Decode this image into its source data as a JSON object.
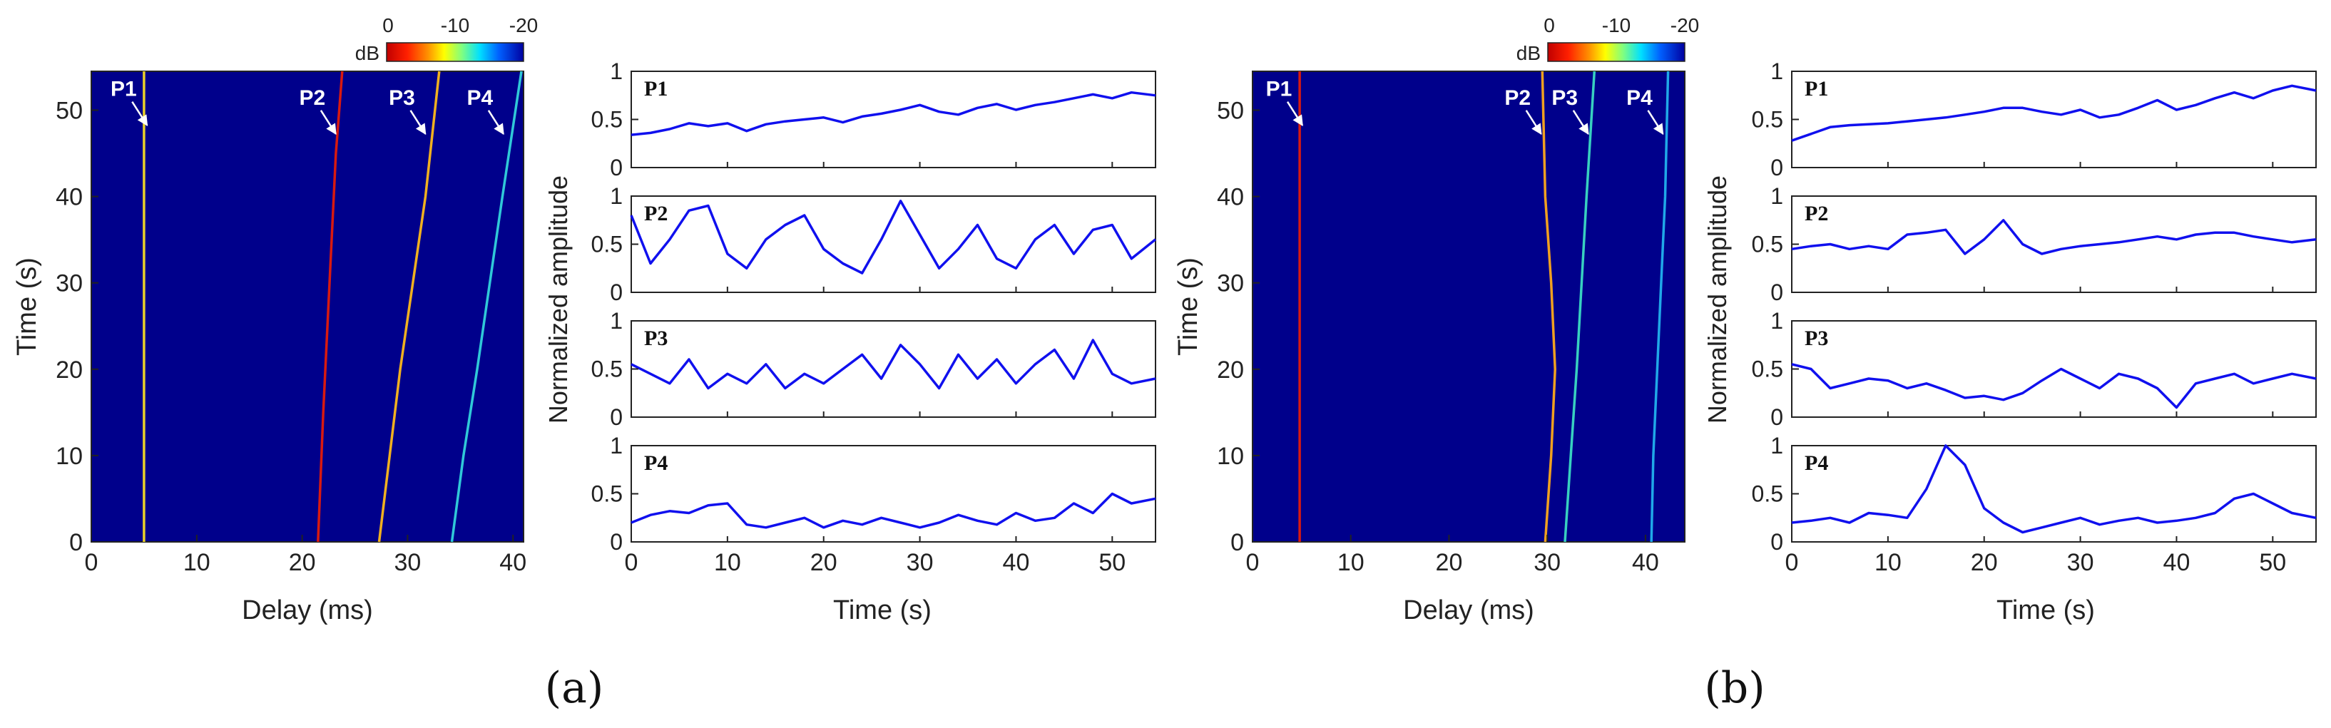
{
  "chart_data": [
    {
      "panel": "(a)",
      "caption": "(a)",
      "delay_time_map": {
        "type": "heatmap",
        "xlabel": "Delay (ms)",
        "ylabel": "Time (s)",
        "xlim": [
          0,
          41
        ],
        "ylim": [
          0,
          54.5
        ],
        "xticks": [
          "0",
          "10",
          "20",
          "30",
          "40"
        ],
        "yticks": [
          "0",
          "10",
          "20",
          "30",
          "40",
          "50"
        ],
        "background_color": "#00008B",
        "colorbar": {
          "label": "dB",
          "ticks": [
            "0",
            "-10",
            "-20"
          ],
          "range": [
            0,
            -20
          ]
        },
        "paths": [
          {
            "name": "P1",
            "color": "#e8d02a",
            "trace": [
              [
                5.0,
                0
              ],
              [
                5.0,
                54.5
              ]
            ]
          },
          {
            "name": "P2",
            "color": "#d81a10",
            "trace": [
              [
                21.5,
                0
              ],
              [
                22.0,
                15
              ],
              [
                22.6,
                30
              ],
              [
                23.2,
                45
              ],
              [
                23.8,
                54.5
              ]
            ]
          },
          {
            "name": "P3",
            "color": "#f0b020",
            "trace": [
              [
                27.3,
                0
              ],
              [
                28.3,
                10
              ],
              [
                29.3,
                20
              ],
              [
                30.5,
                30
              ],
              [
                31.7,
                40
              ],
              [
                33.0,
                54.5
              ]
            ]
          },
          {
            "name": "P4",
            "color": "#30c8d8",
            "trace": [
              [
                34.2,
                0
              ],
              [
                35.3,
                10
              ],
              [
                36.6,
                20
              ],
              [
                37.8,
                30
              ],
              [
                39.0,
                40
              ],
              [
                40.8,
                54.5
              ]
            ]
          }
        ],
        "annotations": [
          {
            "label": "P1",
            "tip": [
              5.5,
              48
            ]
          },
          {
            "label": "P2",
            "tip": [
              23.4,
              47
            ]
          },
          {
            "label": "P3",
            "tip": [
              31.9,
              47
            ]
          },
          {
            "label": "P4",
            "tip": [
              39.3,
              47
            ]
          }
        ]
      },
      "amplitude_traces": {
        "type": "line",
        "xlabel": "Time (s)",
        "ylabel": "Normalized amplitude",
        "xlim": [
          0,
          54.5
        ],
        "ylim": [
          0,
          1
        ],
        "xticks": [
          "0",
          "10",
          "20",
          "30",
          "40",
          "50"
        ],
        "yticks": [
          "0",
          "0.5",
          "1"
        ],
        "line_color": "#1010ee",
        "x": [
          0,
          2,
          4,
          6,
          8,
          10,
          12,
          14,
          16,
          18,
          20,
          22,
          24,
          26,
          28,
          30,
          32,
          34,
          36,
          38,
          40,
          42,
          44,
          46,
          48,
          50,
          52,
          54.5
        ],
        "series": [
          {
            "name": "P1",
            "values": [
              0.34,
              0.36,
              0.4,
              0.46,
              0.43,
              0.46,
              0.38,
              0.45,
              0.48,
              0.5,
              0.52,
              0.47,
              0.53,
              0.56,
              0.6,
              0.65,
              0.58,
              0.55,
              0.62,
              0.66,
              0.6,
              0.65,
              0.68,
              0.72,
              0.76,
              0.72,
              0.78,
              0.75
            ]
          },
          {
            "name": "P2",
            "values": [
              0.8,
              0.3,
              0.55,
              0.85,
              0.9,
              0.4,
              0.25,
              0.55,
              0.7,
              0.8,
              0.45,
              0.3,
              0.2,
              0.55,
              0.95,
              0.6,
              0.25,
              0.45,
              0.7,
              0.35,
              0.25,
              0.55,
              0.7,
              0.4,
              0.65,
              0.7,
              0.35,
              0.55
            ]
          },
          {
            "name": "P3",
            "values": [
              0.55,
              0.45,
              0.35,
              0.6,
              0.3,
              0.45,
              0.35,
              0.55,
              0.3,
              0.45,
              0.35,
              0.5,
              0.65,
              0.4,
              0.75,
              0.55,
              0.3,
              0.65,
              0.4,
              0.6,
              0.35,
              0.55,
              0.7,
              0.4,
              0.8,
              0.45,
              0.35,
              0.4
            ]
          },
          {
            "name": "P4",
            "values": [
              0.2,
              0.28,
              0.32,
              0.3,
              0.38,
              0.4,
              0.18,
              0.15,
              0.2,
              0.25,
              0.15,
              0.22,
              0.18,
              0.25,
              0.2,
              0.15,
              0.2,
              0.28,
              0.22,
              0.18,
              0.3,
              0.22,
              0.25,
              0.4,
              0.3,
              0.5,
              0.4,
              0.45
            ]
          }
        ]
      }
    },
    {
      "panel": "(b)",
      "caption": "(b)",
      "delay_time_map": {
        "type": "heatmap",
        "xlabel": "Delay (ms)",
        "ylabel": "Time (s)",
        "xlim": [
          0,
          44
        ],
        "ylim": [
          0,
          54.5
        ],
        "xticks": [
          "0",
          "10",
          "20",
          "30",
          "40"
        ],
        "yticks": [
          "0",
          "10",
          "20",
          "30",
          "40",
          "50"
        ],
        "background_color": "#00008B",
        "colorbar": {
          "label": "dB",
          "ticks": [
            "0",
            "-10",
            "-20"
          ],
          "range": [
            0,
            -20
          ]
        },
        "paths": [
          {
            "name": "P1",
            "color": "#d81a10",
            "trace": [
              [
                4.8,
                0
              ],
              [
                4.8,
                54.5
              ]
            ]
          },
          {
            "name": "P2",
            "color": "#f0a020",
            "trace": [
              [
                29.8,
                0
              ],
              [
                30.4,
                10
              ],
              [
                30.8,
                20
              ],
              [
                30.4,
                30
              ],
              [
                29.8,
                40
              ],
              [
                29.5,
                54.5
              ]
            ]
          },
          {
            "name": "P3",
            "color": "#38d0c0",
            "trace": [
              [
                31.8,
                0
              ],
              [
                32.4,
                10
              ],
              [
                33.0,
                20
              ],
              [
                33.5,
                30
              ],
              [
                34.0,
                40
              ],
              [
                34.8,
                54.5
              ]
            ]
          },
          {
            "name": "P4",
            "color": "#20a8e8",
            "trace": [
              [
                40.6,
                0
              ],
              [
                40.8,
                10
              ],
              [
                41.2,
                20
              ],
              [
                41.6,
                30
              ],
              [
                42.0,
                40
              ],
              [
                42.3,
                54.5
              ]
            ]
          }
        ],
        "annotations": [
          {
            "label": "P1",
            "tip": [
              5.3,
              48
            ]
          },
          {
            "label": "P2",
            "tip": [
              29.6,
              47
            ]
          },
          {
            "label": "P3",
            "tip": [
              34.4,
              47
            ]
          },
          {
            "label": "P4",
            "tip": [
              42.0,
              47
            ]
          }
        ]
      },
      "amplitude_traces": {
        "type": "line",
        "xlabel": "Time (s)",
        "ylabel": "Normalized amplitude",
        "xlim": [
          0,
          54.5
        ],
        "ylim": [
          0,
          1
        ],
        "xticks": [
          "0",
          "10",
          "20",
          "30",
          "40",
          "50"
        ],
        "yticks": [
          "0",
          "0.5",
          "1"
        ],
        "line_color": "#1010ee",
        "x": [
          0,
          2,
          4,
          6,
          8,
          10,
          12,
          14,
          16,
          18,
          20,
          22,
          24,
          26,
          28,
          30,
          32,
          34,
          36,
          38,
          40,
          42,
          44,
          46,
          48,
          50,
          52,
          54.5
        ],
        "series": [
          {
            "name": "P1",
            "values": [
              0.28,
              0.35,
              0.42,
              0.44,
              0.45,
              0.46,
              0.48,
              0.5,
              0.52,
              0.55,
              0.58,
              0.62,
              0.62,
              0.58,
              0.55,
              0.6,
              0.52,
              0.55,
              0.62,
              0.7,
              0.6,
              0.65,
              0.72,
              0.78,
              0.72,
              0.8,
              0.85,
              0.8
            ]
          },
          {
            "name": "P2",
            "values": [
              0.45,
              0.48,
              0.5,
              0.45,
              0.48,
              0.45,
              0.6,
              0.62,
              0.65,
              0.4,
              0.55,
              0.75,
              0.5,
              0.4,
              0.45,
              0.48,
              0.5,
              0.52,
              0.55,
              0.58,
              0.55,
              0.6,
              0.62,
              0.62,
              0.58,
              0.55,
              0.52,
              0.55
            ]
          },
          {
            "name": "P3",
            "values": [
              0.55,
              0.5,
              0.3,
              0.35,
              0.4,
              0.38,
              0.3,
              0.35,
              0.28,
              0.2,
              0.22,
              0.18,
              0.25,
              0.38,
              0.5,
              0.4,
              0.3,
              0.45,
              0.4,
              0.3,
              0.1,
              0.35,
              0.4,
              0.45,
              0.35,
              0.4,
              0.45,
              0.4
            ]
          },
          {
            "name": "P4",
            "values": [
              0.2,
              0.22,
              0.25,
              0.2,
              0.3,
              0.28,
              0.25,
              0.55,
              1.0,
              0.8,
              0.35,
              0.2,
              0.1,
              0.15,
              0.2,
              0.25,
              0.18,
              0.22,
              0.25,
              0.2,
              0.22,
              0.25,
              0.3,
              0.45,
              0.5,
              0.4,
              0.3,
              0.25
            ]
          }
        ]
      }
    }
  ]
}
